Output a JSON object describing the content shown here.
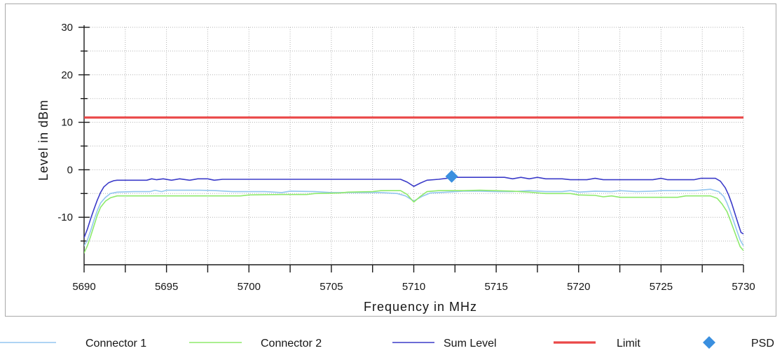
{
  "chart_data": {
    "type": "line",
    "xlabel": "Frequency in MHz",
    "ylabel": "Level in dBm",
    "xlim": [
      5690,
      5730
    ],
    "ylim": [
      -20,
      30
    ],
    "x_ticks": [
      5690,
      5695,
      5700,
      5705,
      5710,
      5715,
      5720,
      5725,
      5730
    ],
    "y_ticks": [
      30,
      20,
      10,
      0,
      -10
    ],
    "x_minor_step": 2.5,
    "y_minor_step": 5,
    "grid": true,
    "legend_position": "bottom",
    "series": [
      {
        "name": "Connector 1",
        "color": "#94c6f0",
        "x": [
          5690.0,
          5690.2,
          5690.4,
          5690.6,
          5690.8,
          5691.0,
          5691.3,
          5691.6,
          5692.0,
          5693.0,
          5694.0,
          5694.3,
          5694.7,
          5695.0,
          5696.0,
          5697.0,
          5698.0,
          5699.0,
          5700.0,
          5701.0,
          5702.0,
          5702.5,
          5704.0,
          5705.0,
          5706.0,
          5707.0,
          5708.0,
          5709.0,
          5709.5,
          5710.0,
          5710.5,
          5711.0,
          5712.0,
          5713.0,
          5714.0,
          5715.0,
          5716.0,
          5717.0,
          5718.0,
          5719.0,
          5719.5,
          5720.0,
          5721.0,
          5722.0,
          5722.5,
          5723.5,
          5724.5,
          5725.0,
          5726.0,
          5727.0,
          5728.0,
          5728.5,
          5728.8,
          5729.0,
          5729.2,
          5729.4,
          5729.6,
          5729.8,
          5730.0
        ],
        "y": [
          -16.0,
          -14.8,
          -12.8,
          -10.6,
          -8.6,
          -7.0,
          -5.8,
          -5.0,
          -4.7,
          -4.6,
          -4.6,
          -4.3,
          -4.6,
          -4.3,
          -4.3,
          -4.3,
          -4.4,
          -4.6,
          -4.6,
          -4.6,
          -4.8,
          -4.5,
          -4.6,
          -4.8,
          -4.8,
          -4.8,
          -4.8,
          -5.0,
          -5.5,
          -6.6,
          -5.6,
          -4.9,
          -4.7,
          -4.5,
          -4.5,
          -4.6,
          -4.6,
          -4.4,
          -4.6,
          -4.6,
          -4.4,
          -4.7,
          -4.5,
          -4.6,
          -4.4,
          -4.6,
          -4.5,
          -4.4,
          -4.4,
          -4.4,
          -4.1,
          -4.6,
          -5.6,
          -7.0,
          -8.8,
          -10.8,
          -12.8,
          -14.8,
          -16.0
        ]
      },
      {
        "name": "Connector 2",
        "color": "#8eea6c",
        "x": [
          5690.0,
          5690.2,
          5690.4,
          5690.6,
          5690.8,
          5691.0,
          5691.3,
          5691.6,
          5692.0,
          5694.0,
          5696.0,
          5698.0,
          5699.5,
          5700.0,
          5702.0,
          5703.5,
          5704.0,
          5705.5,
          5706.0,
          5707.5,
          5708.0,
          5709.2,
          5709.6,
          5710.0,
          5710.4,
          5710.8,
          5711.5,
          5713.0,
          5714.0,
          5716.0,
          5717.0,
          5718.0,
          5719.5,
          5720.0,
          5721.0,
          5721.5,
          5722.0,
          5722.5,
          5724.0,
          5725.0,
          5726.0,
          5726.5,
          5728.0,
          5728.4,
          5728.7,
          5729.0,
          5729.2,
          5729.4,
          5729.6,
          5729.8,
          5730.0
        ],
        "y": [
          -17.5,
          -16.0,
          -14.0,
          -11.8,
          -9.6,
          -7.9,
          -6.6,
          -5.9,
          -5.5,
          -5.5,
          -5.5,
          -5.5,
          -5.5,
          -5.3,
          -5.2,
          -5.2,
          -5.0,
          -4.9,
          -4.7,
          -4.6,
          -4.4,
          -4.4,
          -5.2,
          -6.8,
          -5.6,
          -4.6,
          -4.4,
          -4.4,
          -4.3,
          -4.5,
          -4.7,
          -5.0,
          -5.0,
          -5.3,
          -5.4,
          -5.7,
          -5.5,
          -5.8,
          -5.8,
          -5.8,
          -5.8,
          -5.5,
          -5.5,
          -6.0,
          -7.2,
          -8.8,
          -10.6,
          -12.5,
          -14.4,
          -16.2,
          -17.0
        ]
      },
      {
        "name": "Sum Level",
        "color": "#3b3bc9",
        "x": [
          5690.0,
          5690.2,
          5690.4,
          5690.6,
          5690.8,
          5691.0,
          5691.2,
          5691.5,
          5691.8,
          5692.0,
          5693.0,
          5693.8,
          5694.1,
          5694.4,
          5694.8,
          5695.3,
          5695.8,
          5696.4,
          5696.9,
          5697.5,
          5697.9,
          5698.4,
          5700.0,
          5702.0,
          5704.0,
          5706.0,
          5708.0,
          5709.2,
          5709.6,
          5710.0,
          5710.4,
          5710.8,
          5711.5,
          5712.0,
          5712.5,
          5713.5,
          5714.5,
          5715.5,
          5716.0,
          5716.5,
          5717.0,
          5717.5,
          5718.0,
          5719.0,
          5719.5,
          5720.5,
          5721.0,
          5721.5,
          5722.5,
          5723.5,
          5724.5,
          5725.0,
          5725.4,
          5726.0,
          5727.0,
          5727.4,
          5728.3,
          5728.6,
          5728.9,
          5729.1,
          5729.3,
          5729.5,
          5729.7,
          5729.85,
          5730.0
        ],
        "y": [
          -14.3,
          -12.5,
          -10.3,
          -8.3,
          -6.4,
          -4.8,
          -3.6,
          -2.7,
          -2.3,
          -2.2,
          -2.2,
          -2.2,
          -1.9,
          -2.1,
          -1.9,
          -2.2,
          -1.9,
          -2.2,
          -1.9,
          -1.9,
          -2.2,
          -2.0,
          -2.0,
          -2.0,
          -2.0,
          -2.0,
          -2.0,
          -2.0,
          -2.6,
          -3.5,
          -2.8,
          -2.2,
          -2.0,
          -1.8,
          -1.6,
          -1.6,
          -1.6,
          -1.6,
          -1.9,
          -1.6,
          -1.9,
          -1.6,
          -1.9,
          -1.9,
          -2.1,
          -2.1,
          -1.8,
          -2.1,
          -2.1,
          -2.1,
          -2.1,
          -1.8,
          -2.1,
          -2.1,
          -2.1,
          -1.8,
          -1.8,
          -2.4,
          -3.8,
          -5.3,
          -7.2,
          -9.4,
          -11.6,
          -13.2,
          -13.5
        ]
      },
      {
        "name": "Limit",
        "color": "#ea4747",
        "x": [
          5690,
          5730
        ],
        "y": [
          11,
          11
        ]
      },
      {
        "name": "PSD",
        "color": "#3a8fdf",
        "marker": "diamond",
        "x": [
          5712.3
        ],
        "y": [
          -1.4
        ]
      }
    ]
  }
}
